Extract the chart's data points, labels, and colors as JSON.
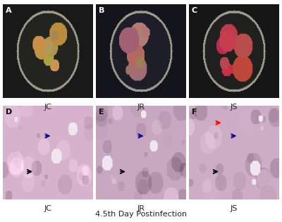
{
  "title": "4.5th Day Postinfection",
  "top_labels": [
    "JC",
    "JR",
    "JS"
  ],
  "bottom_labels": [
    "JC",
    "JR",
    "JS"
  ],
  "panel_labels_top": [
    "A",
    "B",
    "C"
  ],
  "panel_labels_bottom": [
    "D",
    "E",
    "F"
  ],
  "bg_color": "#ffffff",
  "top_row_bg": "#1a1a1a",
  "top_row_colors": [
    [
      "#c8a060",
      "#8b6030"
    ],
    [
      "#c09080",
      "#a06858",
      "#cc3333"
    ],
    [
      "#cc4444",
      "#dd5555",
      "#bb3333"
    ]
  ],
  "bottom_row_bg": [
    "#d8b8cc",
    "#c8a8bc",
    "#d0b0c4"
  ],
  "label_color": "#222222",
  "title_fontsize": 8,
  "label_fontsize": 8,
  "panel_label_fontsize": 8
}
